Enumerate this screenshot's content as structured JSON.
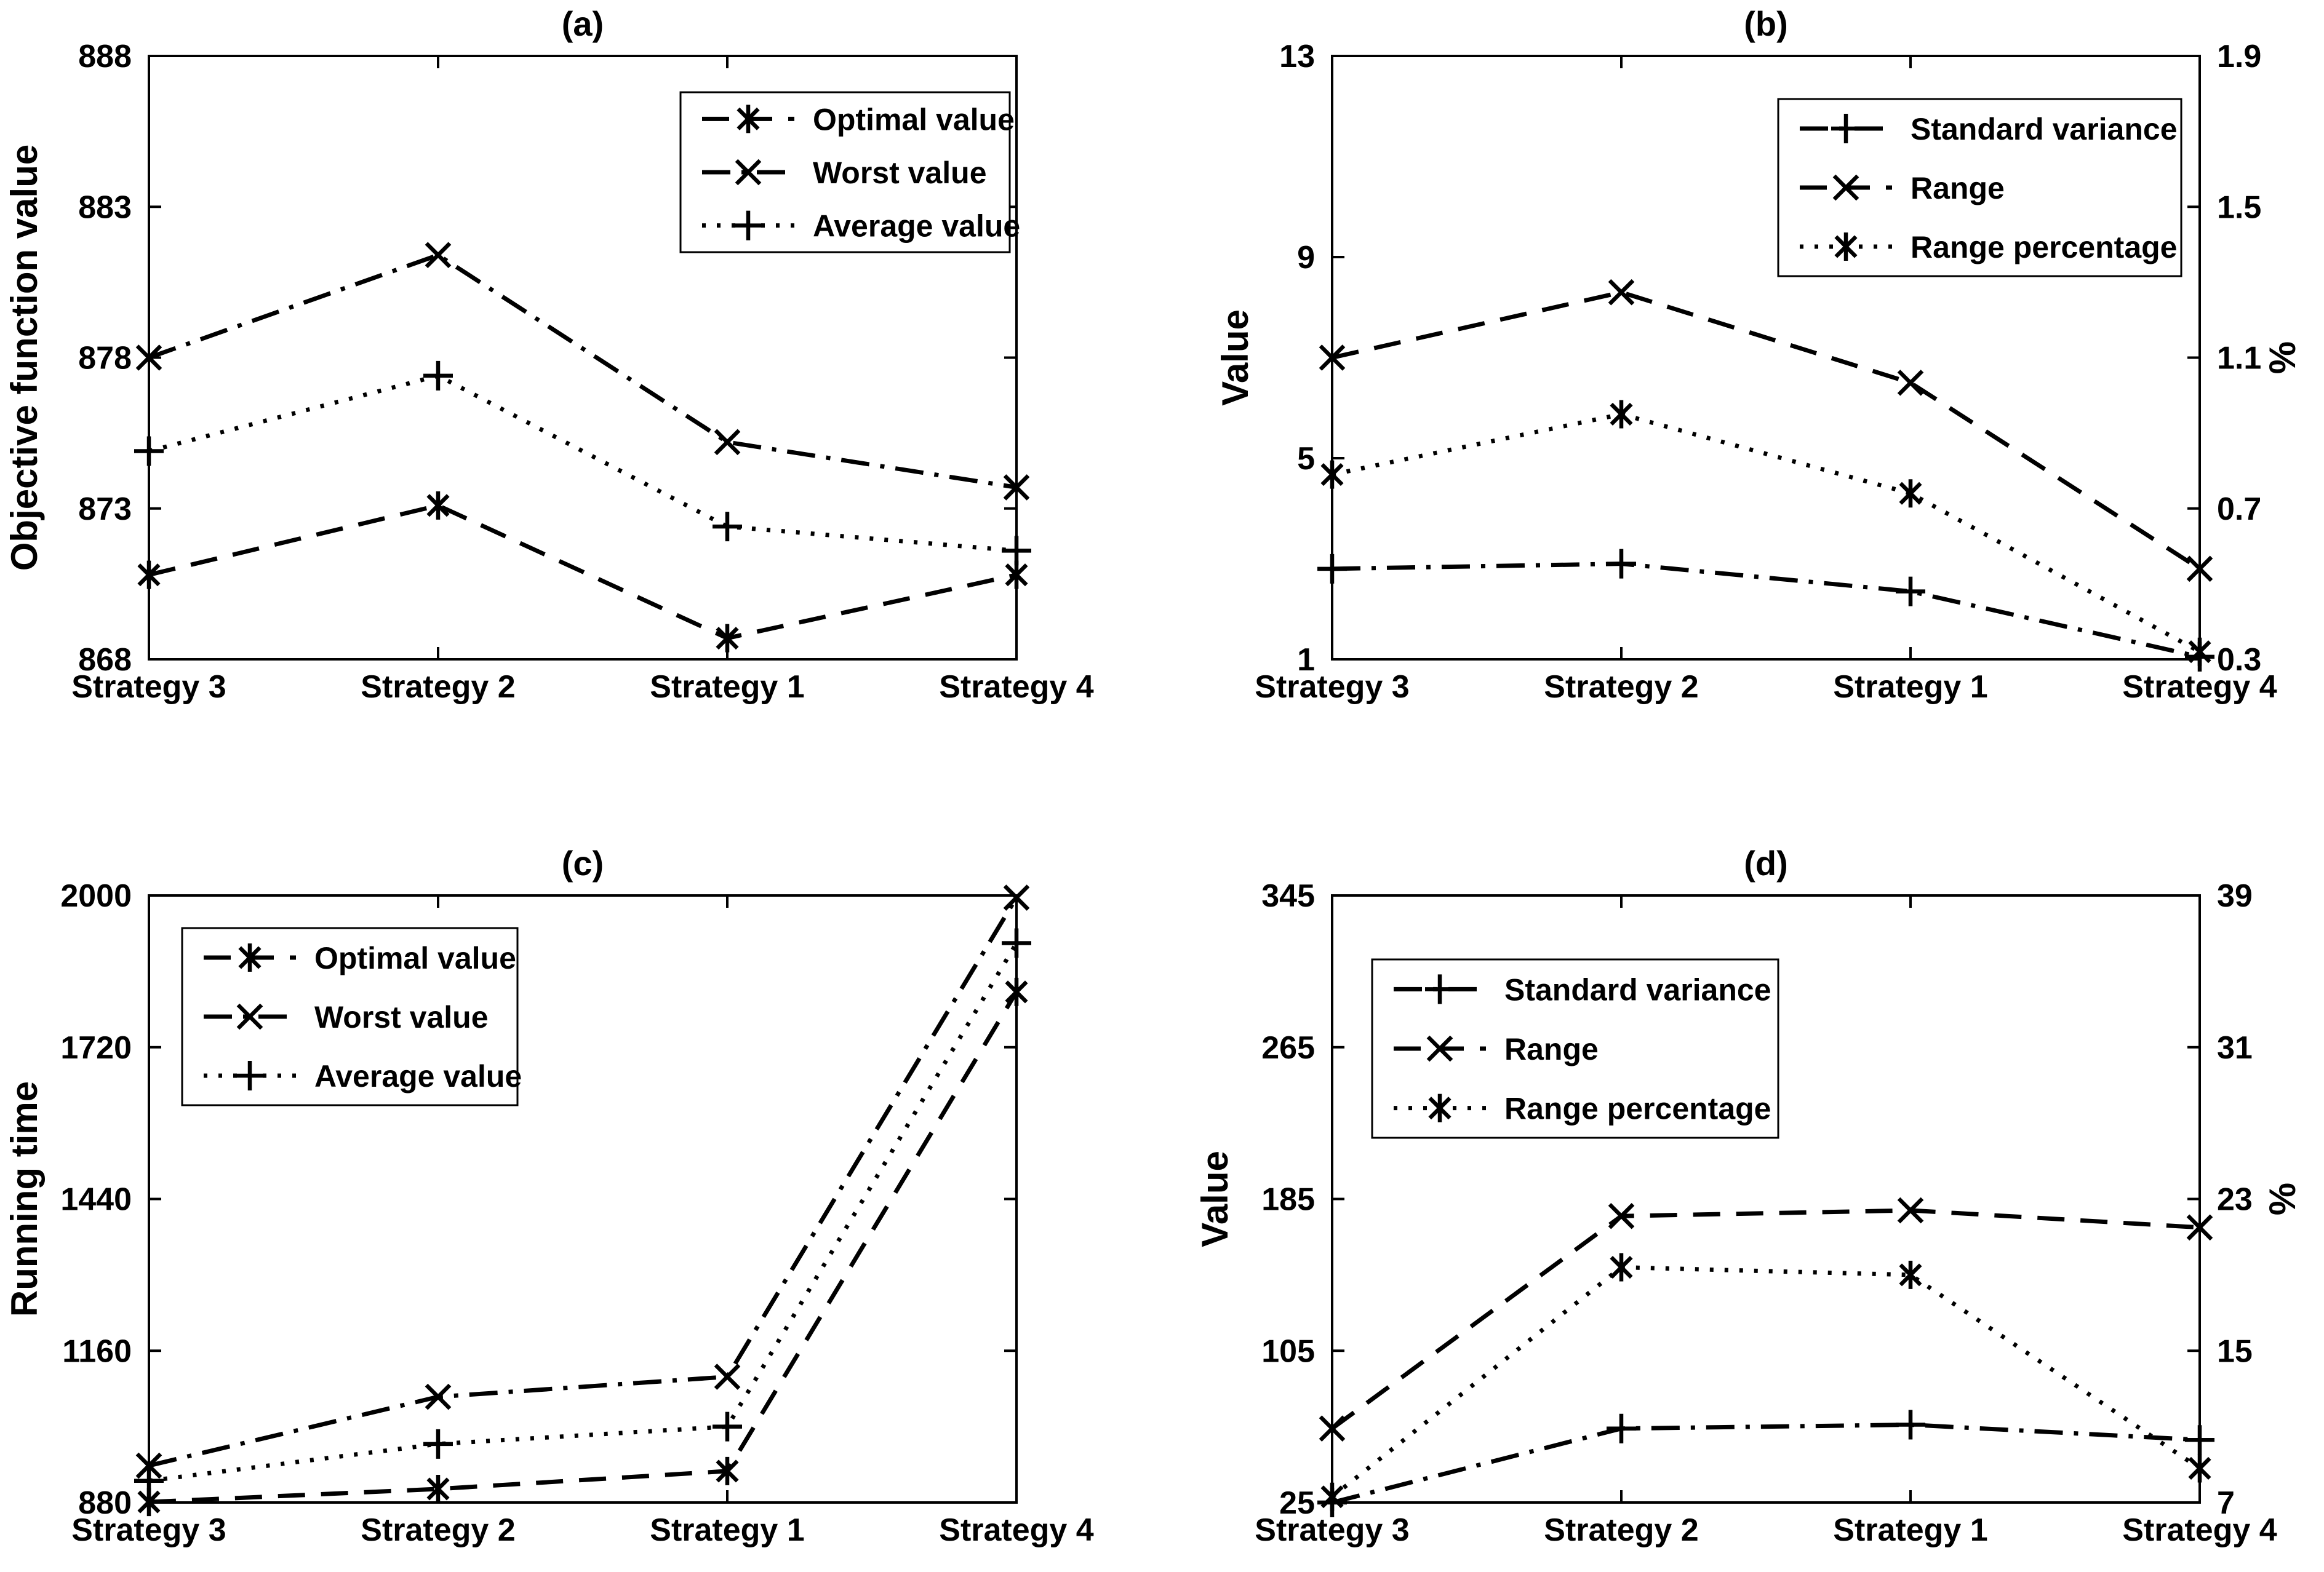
{
  "figure": {
    "background": "#ffffff",
    "ink": "#000000",
    "categories": [
      "Strategy 3",
      "Strategy 2",
      "Strategy 1",
      "Strategy 4"
    ]
  },
  "chart_data": [
    {
      "id": "a",
      "type": "line",
      "title": "(a)",
      "categories": [
        "Strategy 3",
        "Strategy 2",
        "Strategy 1",
        "Strategy 4"
      ],
      "y_left": {
        "label": "Objective function value",
        "min": 868,
        "max": 888,
        "ticks": [
          868,
          873,
          878,
          883,
          888
        ]
      },
      "y_right": null,
      "grid": false,
      "legend": {
        "position": "top-right",
        "entries": [
          "Optimal value",
          "Worst value",
          "Average value"
        ]
      },
      "series": [
        {
          "name": "Optimal value",
          "axis": "left",
          "line": "dashed",
          "marker": "asterisk",
          "values": [
            870.8,
            873.1,
            868.7,
            870.8
          ]
        },
        {
          "name": "Worst value",
          "axis": "left",
          "line": "dashdot",
          "marker": "x",
          "values": [
            878.0,
            881.4,
            875.2,
            873.7
          ]
        },
        {
          "name": "Average value",
          "axis": "left",
          "line": "dotted",
          "marker": "plus",
          "values": [
            874.9,
            877.4,
            872.4,
            871.6
          ]
        }
      ]
    },
    {
      "id": "b",
      "type": "line",
      "title": "(b)",
      "categories": [
        "Strategy 3",
        "Strategy 2",
        "Strategy 1",
        "Strategy 4"
      ],
      "y_left": {
        "label": "Value",
        "min": 1,
        "max": 13,
        "ticks": [
          1,
          5,
          9,
          13
        ]
      },
      "y_right": {
        "label": "%",
        "min": 0.3,
        "max": 1.9,
        "ticks": [
          0.3,
          0.7,
          1.1,
          1.5,
          1.9
        ]
      },
      "grid": false,
      "legend": {
        "position": "top-right",
        "entries": [
          "Standard variance",
          "Range",
          "Range percentage"
        ]
      },
      "series": [
        {
          "name": "Standard variance",
          "axis": "left",
          "line": "dashdot",
          "marker": "plus",
          "values": [
            2.8,
            2.9,
            2.35,
            1.05
          ]
        },
        {
          "name": "Range",
          "axis": "left",
          "line": "dashed",
          "marker": "x",
          "values": [
            7.0,
            8.3,
            6.5,
            2.8
          ]
        },
        {
          "name": "Range percentage",
          "axis": "right",
          "line": "dotted",
          "marker": "asterisk",
          "values": [
            0.79,
            0.95,
            0.74,
            0.32
          ]
        }
      ]
    },
    {
      "id": "c",
      "type": "line",
      "title": "(c)",
      "categories": [
        "Strategy 3",
        "Strategy 2",
        "Strategy 1",
        "Strategy 4"
      ],
      "y_left": {
        "label": "Running time",
        "min": 880,
        "max": 2000,
        "ticks": [
          880,
          1160,
          1440,
          1720,
          2000
        ]
      },
      "y_right": null,
      "grid": false,
      "legend": {
        "position": "top-left",
        "entries": [
          "Optimal value",
          "Worst value",
          "Average value"
        ]
      },
      "series": [
        {
          "name": "Optimal value",
          "axis": "left",
          "line": "dashed",
          "marker": "asterisk",
          "values": [
            881,
            905,
            938,
            1822
          ]
        },
        {
          "name": "Worst value",
          "axis": "left",
          "line": "dashdot",
          "marker": "x",
          "values": [
            948,
            1075,
            1112,
            1996
          ]
        },
        {
          "name": "Average value",
          "axis": "left",
          "line": "dotted",
          "marker": "plus",
          "values": [
            920,
            988,
            1020,
            1912
          ]
        }
      ]
    },
    {
      "id": "d",
      "type": "line",
      "title": "(d)",
      "categories": [
        "Strategy 3",
        "Strategy 2",
        "Strategy 1",
        "Strategy 4"
      ],
      "y_left": {
        "label": "Value",
        "min": 25,
        "max": 345,
        "ticks": [
          25,
          105,
          185,
          265,
          345
        ]
      },
      "y_right": {
        "label": "%",
        "min": 7,
        "max": 39,
        "ticks": [
          7,
          15,
          23,
          31,
          39
        ]
      },
      "grid": false,
      "legend": {
        "position": "top-left",
        "entries": [
          "Standard variance",
          "Range",
          "Range percentage"
        ]
      },
      "series": [
        {
          "name": "Standard variance",
          "axis": "left",
          "line": "dashdot",
          "marker": "plus",
          "values": [
            25,
            64,
            66,
            58
          ]
        },
        {
          "name": "Range",
          "axis": "left",
          "line": "dashed",
          "marker": "x",
          "values": [
            64,
            176,
            179,
            170
          ]
        },
        {
          "name": "Range percentage",
          "axis": "right",
          "line": "dotted",
          "marker": "asterisk",
          "values": [
            7.3,
            19.4,
            19.0,
            8.8
          ]
        }
      ]
    }
  ]
}
